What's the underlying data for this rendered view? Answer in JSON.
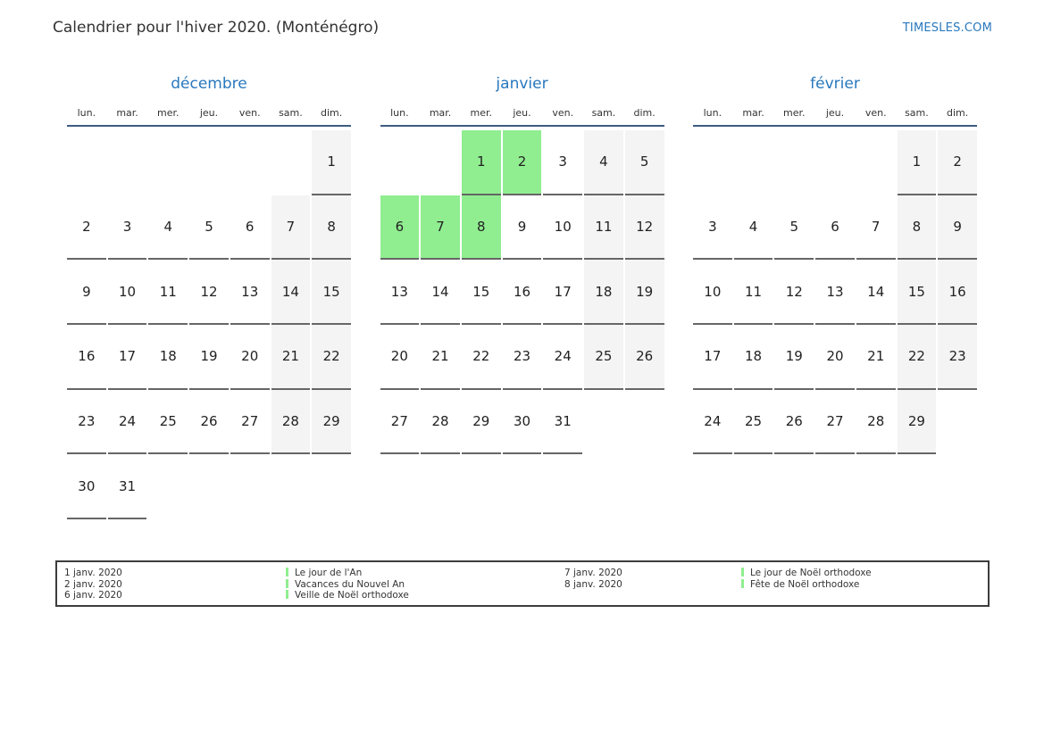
{
  "header": {
    "title": "Calendrier pour l'hiver 2020. (Monténégro)",
    "site_link": "TIMESLES.COM"
  },
  "colors": {
    "accent_blue": "#2878be",
    "header_underline": "#3d5c82",
    "holiday_green": "#90ee90",
    "weekend_gray": "#f4f4f4",
    "cell_border_gray": "#666666"
  },
  "weekdays": [
    "lun.",
    "mar.",
    "mer.",
    "jeu.",
    "ven.",
    "sam.",
    "dim."
  ],
  "months": [
    {
      "name": "décembre",
      "holidays": [],
      "weeks": [
        [
          0,
          0,
          0,
          0,
          0,
          0,
          1
        ],
        [
          2,
          3,
          4,
          5,
          6,
          7,
          8
        ],
        [
          9,
          10,
          11,
          12,
          13,
          14,
          15
        ],
        [
          16,
          17,
          18,
          19,
          20,
          21,
          22
        ],
        [
          23,
          24,
          25,
          26,
          27,
          28,
          29
        ],
        [
          30,
          31,
          0,
          0,
          0,
          0,
          0
        ]
      ]
    },
    {
      "name": "janvier",
      "holidays": [
        1,
        2,
        6,
        7,
        8
      ],
      "weeks": [
        [
          0,
          0,
          1,
          2,
          3,
          4,
          5
        ],
        [
          6,
          7,
          8,
          9,
          10,
          11,
          12
        ],
        [
          13,
          14,
          15,
          16,
          17,
          18,
          19
        ],
        [
          20,
          21,
          22,
          23,
          24,
          25,
          26
        ],
        [
          27,
          28,
          29,
          30,
          31,
          0,
          0
        ]
      ]
    },
    {
      "name": "février",
      "holidays": [],
      "weeks": [
        [
          0,
          0,
          0,
          0,
          0,
          1,
          2
        ],
        [
          3,
          4,
          5,
          6,
          7,
          8,
          9
        ],
        [
          10,
          11,
          12,
          13,
          14,
          15,
          16
        ],
        [
          17,
          18,
          19,
          20,
          21,
          22,
          23
        ],
        [
          24,
          25,
          26,
          27,
          28,
          29,
          0
        ]
      ]
    }
  ],
  "legend": {
    "groups": [
      {
        "entries": [
          {
            "date": "1 janv. 2020",
            "name": "Le jour de l'An"
          },
          {
            "date": "2 janv. 2020",
            "name": "Vacances du Nouvel An"
          },
          {
            "date": "6 janv. 2020",
            "name": "Veille de Noël orthodoxe"
          }
        ]
      },
      {
        "entries": [
          {
            "date": "7 janv. 2020",
            "name": "Le jour de Noël orthodoxe"
          },
          {
            "date": "8 janv. 2020",
            "name": "Fête de Noël orthodoxe"
          }
        ]
      }
    ]
  }
}
